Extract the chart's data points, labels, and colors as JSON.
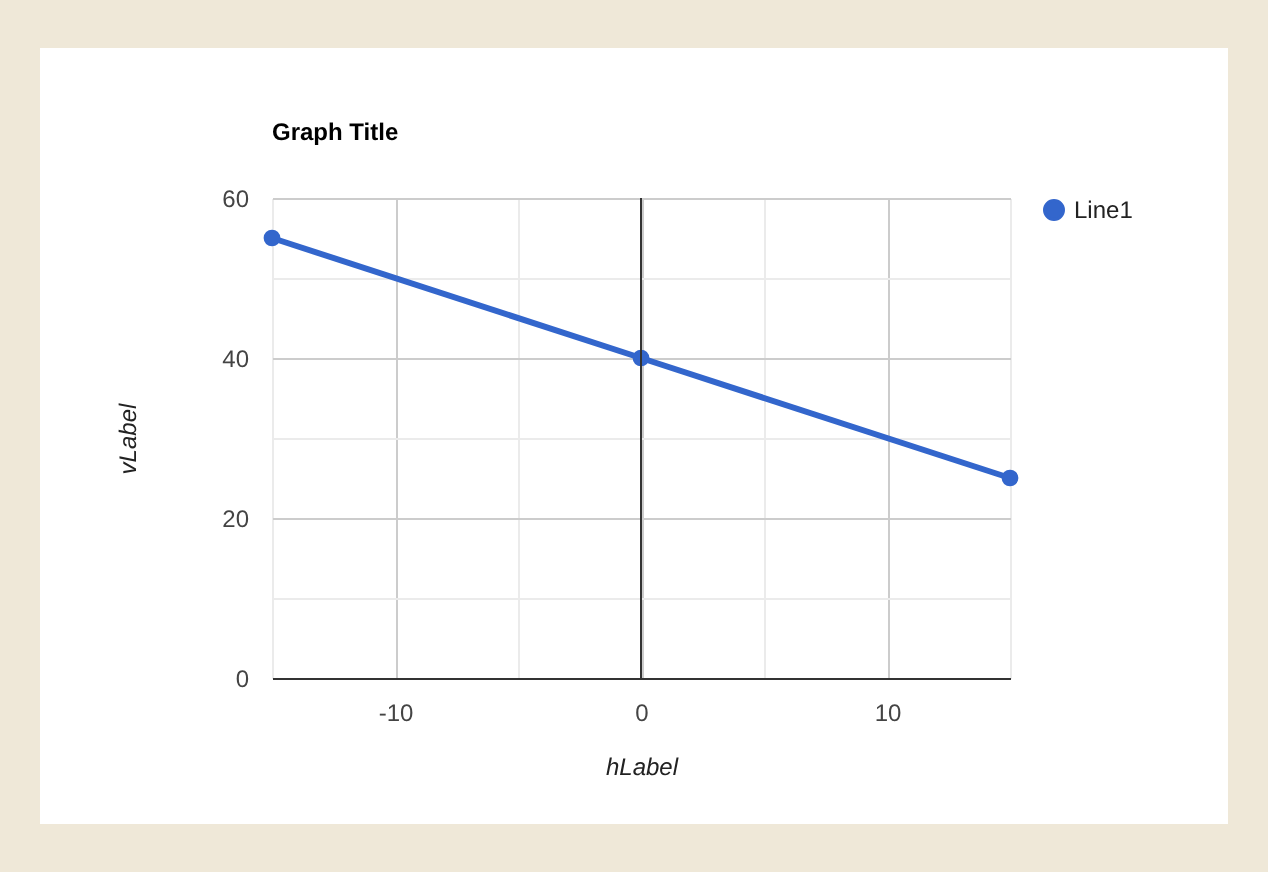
{
  "chart_data": {
    "type": "line",
    "title": "Graph Title",
    "xlabel": "hLabel",
    "ylabel": "vLabel",
    "x": [
      -15,
      0,
      15
    ],
    "series": [
      {
        "name": "Line1",
        "color": "#3366cc",
        "values": [
          55,
          40,
          25
        ]
      }
    ],
    "xlim": [
      -15,
      15
    ],
    "xticks": [
      {
        "value": -15,
        "label": null
      },
      {
        "value": -10,
        "label": "-10"
      },
      {
        "value": -5,
        "label": null
      },
      0,
      {
        "value": 5,
        "label": null
      },
      10,
      {
        "value": 15,
        "label": null
      }
    ],
    "ylim": [
      0,
      60
    ],
    "yticks": [
      0,
      {
        "value": 10,
        "label": null
      },
      20,
      {
        "value": 30,
        "label": null
      },
      40,
      {
        "value": 50,
        "label": null
      },
      60
    ],
    "grid": true,
    "legend": "top right",
    "marker": "circle",
    "line_style": "solid",
    "ref_lines": [
      {
        "axis": "x",
        "value": 0,
        "color": "#333333"
      }
    ]
  }
}
